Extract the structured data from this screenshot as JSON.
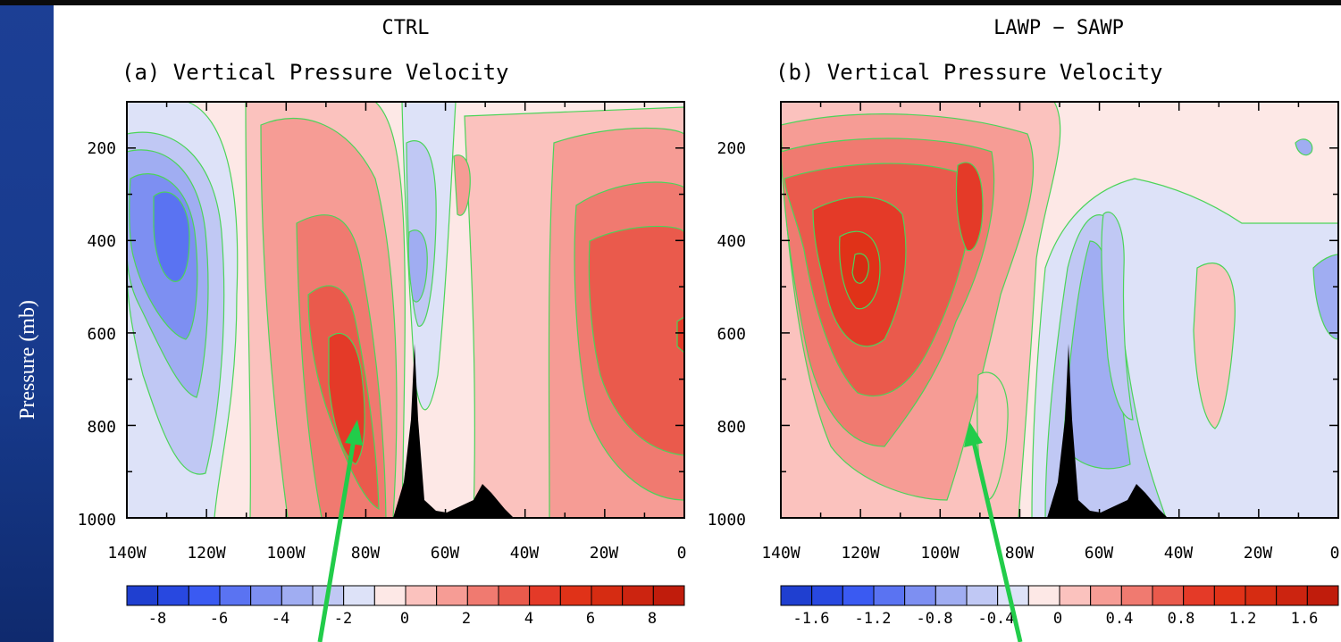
{
  "ylabel": "Pressure (mb)",
  "colors": {
    "contour_line": "#4cd45a",
    "arrow": "#22cc4a",
    "terrain": "#000000",
    "slide_bg": "#1c3f95"
  },
  "chart_data": [
    {
      "type": "heatmap",
      "title": "CTRL",
      "subtitle": "(a) Vertical Pressure Velocity",
      "x_ticks": [
        "140W",
        "120W",
        "100W",
        "80W",
        "60W",
        "40W",
        "20W",
        "0"
      ],
      "xlim": [
        -140,
        0
      ],
      "y_ticks": [
        "200",
        "400",
        "600",
        "800",
        "1000"
      ],
      "ylim": [
        1000,
        100
      ],
      "colorbar": {
        "labels": [
          "-8",
          "-6",
          "-4",
          "-2",
          "0",
          "2",
          "4",
          "6",
          "8"
        ],
        "levels": [
          -9,
          -8,
          -7,
          -6,
          -5,
          -4,
          -3,
          -2,
          -1,
          0,
          1,
          2,
          3,
          4,
          5,
          6,
          7,
          8,
          9
        ],
        "colors": [
          "#1f3fd0",
          "#2848e0",
          "#3a5af2",
          "#5a73f2",
          "#7d8ff2",
          "#a0adf2",
          "#c0c8f4",
          "#dde2f8",
          "#fde8e6",
          "#fbc2be",
          "#f69c95",
          "#f07a70",
          "#ea5a4c",
          "#e43a28",
          "#e03218",
          "#d62c12",
          "#cc2410",
          "#c01c0c"
        ]
      },
      "annotation": "green arrow pointing at core near 85W, 780 mb"
    },
    {
      "type": "heatmap",
      "title": "LAWP − SAWP",
      "subtitle": "(b) Vertical Pressure Velocity",
      "x_ticks": [
        "140W",
        "120W",
        "100W",
        "80W",
        "60W",
        "40W",
        "20W",
        "0"
      ],
      "xlim": [
        -140,
        0
      ],
      "y_ticks": [
        "200",
        "400",
        "600",
        "800",
        "1000"
      ],
      "ylim": [
        1000,
        100
      ],
      "colorbar": {
        "labels": [
          "-1.6",
          "-1.2",
          "-0.8",
          "-0.4",
          "0",
          "0.4",
          "0.8",
          "1.2",
          "1.6"
        ],
        "levels": [
          -1.8,
          -1.6,
          -1.4,
          -1.2,
          -1.0,
          -0.8,
          -0.6,
          -0.4,
          -0.2,
          0,
          0.2,
          0.4,
          0.6,
          0.8,
          1.0,
          1.2,
          1.4,
          1.6,
          1.8
        ],
        "colors": [
          "#1f3fd0",
          "#2848e0",
          "#3a5af2",
          "#5a73f2",
          "#7d8ff2",
          "#a0adf2",
          "#c0c8f4",
          "#dde2f8",
          "#fde8e6",
          "#fbc2be",
          "#f69c95",
          "#f07a70",
          "#ea5a4c",
          "#e43a28",
          "#e03218",
          "#d62c12",
          "#cc2410",
          "#c01c0c"
        ]
      },
      "annotation": "green arrow pointing at region near 90W, 800 mb"
    }
  ]
}
